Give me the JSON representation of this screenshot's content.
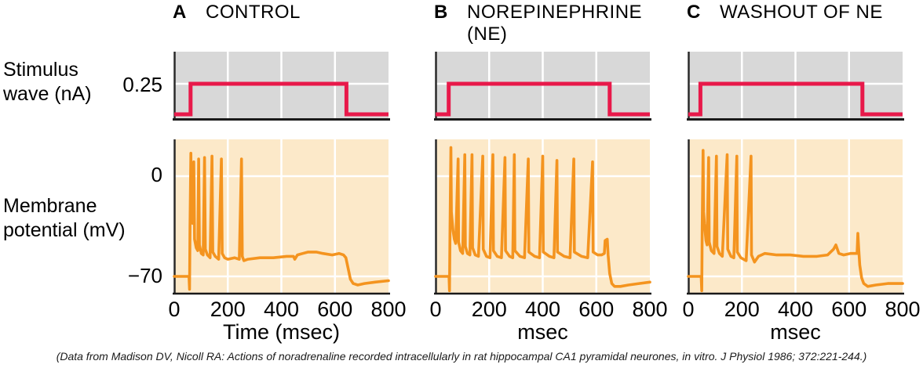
{
  "figure": {
    "row_labels": {
      "stimulus_line1": "Stimulus",
      "stimulus_line2": "wave (nA)",
      "membrane_line1": "Membrane",
      "membrane_line2": "potential (mV)"
    },
    "y_tick_labels": {
      "stimulus_amplitude": "0.25",
      "membrane_zero": "0",
      "membrane_rest": "−70"
    },
    "citation": "(Data from Madison DV, Nicoll RA: Actions of noradrenaline recorded intracellularly in rat hippocampal CA1 pyramidal neurones, in vitro. J Physiol 1986; 372:221-244.)"
  },
  "colors": {
    "stimulus_trace": "#e8194a",
    "membrane_trace": "#f4941f",
    "stimulus_bg": "#d8d8d8",
    "membrane_bg": "#fce9c9",
    "gridline": "#ffffff",
    "axis": "#1a1a1a"
  },
  "chart_data": [
    {
      "letter": "A",
      "title": "CONTROL",
      "title_line2": "",
      "xlabel": "Time (msec)",
      "xlim": [
        0,
        800
      ],
      "x_ticks": [
        0,
        200,
        400,
        600,
        800
      ],
      "stimulus": {
        "type": "line",
        "unit": "nA",
        "ylim": [
          0,
          0.5
        ],
        "y_ticks": [
          0.25
        ],
        "pulse": {
          "onset_msec": 61,
          "offset_msec": 643,
          "amplitude_nA": 0.25
        },
        "points": [
          [
            0,
            0
          ],
          [
            61,
            0
          ],
          [
            61,
            0.25
          ],
          [
            643,
            0.25
          ],
          [
            643,
            0
          ],
          [
            800,
            0
          ]
        ]
      },
      "membrane": {
        "type": "line",
        "unit": "mV",
        "ylim": [
          -82,
          25
        ],
        "y_ticks": [
          0,
          -70
        ],
        "resting_potential_mV": -70,
        "spike_times_msec": [
          62,
          73,
          91,
          113,
          141,
          176,
          251
        ],
        "points": [
          [
            0,
            -70
          ],
          [
            52,
            -70
          ],
          [
            55,
            -70
          ],
          [
            57,
            -79
          ],
          [
            59,
            -35
          ],
          [
            62,
            16
          ],
          [
            64,
            -28
          ],
          [
            69,
            -33
          ],
          [
            73,
            10
          ],
          [
            76,
            -44
          ],
          [
            82,
            -50
          ],
          [
            88,
            -52
          ],
          [
            91,
            12
          ],
          [
            94,
            -48
          ],
          [
            101,
            -54
          ],
          [
            108,
            -55
          ],
          [
            113,
            13
          ],
          [
            116,
            -51
          ],
          [
            124,
            -55
          ],
          [
            134,
            -57
          ],
          [
            141,
            14
          ],
          [
            144,
            -53
          ],
          [
            153,
            -56
          ],
          [
            166,
            -58
          ],
          [
            176,
            12
          ],
          [
            179,
            -54
          ],
          [
            188,
            -57
          ],
          [
            200,
            -58
          ],
          [
            225,
            -57
          ],
          [
            243,
            -58
          ],
          [
            251,
            12
          ],
          [
            254,
            -56
          ],
          [
            260,
            -59
          ],
          [
            275,
            -58
          ],
          [
            320,
            -57
          ],
          [
            370,
            -57
          ],
          [
            420,
            -56
          ],
          [
            445,
            -56
          ],
          [
            450,
            -58
          ],
          [
            460,
            -55
          ],
          [
            480,
            -54
          ],
          [
            500,
            -53
          ],
          [
            530,
            -53
          ],
          [
            555,
            -54
          ],
          [
            590,
            -55
          ],
          [
            615,
            -54
          ],
          [
            632,
            -55
          ],
          [
            641,
            -57
          ],
          [
            650,
            -65
          ],
          [
            658,
            -72
          ],
          [
            668,
            -75
          ],
          [
            685,
            -76
          ],
          [
            710,
            -75
          ],
          [
            750,
            -74
          ],
          [
            800,
            -73
          ]
        ]
      }
    },
    {
      "letter": "B",
      "title": "NOREPINEPHRINE",
      "title_line2": "(NE)",
      "xlabel": "msec",
      "xlim": [
        0,
        800
      ],
      "x_ticks": [
        0,
        200,
        400,
        600,
        800
      ],
      "stimulus": {
        "type": "line",
        "unit": "nA",
        "ylim": [
          0,
          0.5
        ],
        "y_ticks": [
          0.25
        ],
        "pulse": {
          "onset_msec": 49,
          "offset_msec": 650,
          "amplitude_nA": 0.25
        },
        "points": [
          [
            0,
            0
          ],
          [
            49,
            0
          ],
          [
            49,
            0.25
          ],
          [
            650,
            0.25
          ],
          [
            650,
            0
          ],
          [
            800,
            0
          ]
        ]
      },
      "membrane": {
        "type": "line",
        "unit": "mV",
        "ylim": [
          -82,
          25
        ],
        "y_ticks": [
          0,
          -70
        ],
        "resting_potential_mV": -70,
        "spike_times_msec": [
          57,
          84,
          109,
          136,
          176,
          214,
          259,
          294,
          346,
          400,
          453,
          516,
          586
        ],
        "points": [
          [
            0,
            -70
          ],
          [
            47,
            -70
          ],
          [
            50,
            -70
          ],
          [
            52,
            -80
          ],
          [
            54,
            -35
          ],
          [
            57,
            20
          ],
          [
            59,
            -25
          ],
          [
            62,
            -32
          ],
          [
            65,
            -38
          ],
          [
            70,
            -44
          ],
          [
            75,
            -47
          ],
          [
            84,
            12
          ],
          [
            86,
            -46
          ],
          [
            93,
            -52
          ],
          [
            101,
            -54
          ],
          [
            109,
            15
          ],
          [
            111,
            -49
          ],
          [
            119,
            -54
          ],
          [
            128,
            -55
          ],
          [
            136,
            15
          ],
          [
            138,
            -50
          ],
          [
            148,
            -55
          ],
          [
            160,
            -56
          ],
          [
            176,
            14
          ],
          [
            178,
            -51
          ],
          [
            190,
            -56
          ],
          [
            203,
            -57
          ],
          [
            214,
            15
          ],
          [
            216,
            -52
          ],
          [
            230,
            -56
          ],
          [
            246,
            -57
          ],
          [
            259,
            13
          ],
          [
            261,
            -52
          ],
          [
            276,
            -56
          ],
          [
            288,
            -57
          ],
          [
            294,
            15
          ],
          [
            296,
            -52
          ],
          [
            315,
            -56
          ],
          [
            332,
            -57
          ],
          [
            346,
            12
          ],
          [
            348,
            -53
          ],
          [
            370,
            -56
          ],
          [
            388,
            -57
          ],
          [
            400,
            14
          ],
          [
            402,
            -53
          ],
          [
            425,
            -56
          ],
          [
            442,
            -57
          ],
          [
            453,
            11
          ],
          [
            455,
            -53
          ],
          [
            480,
            -56
          ],
          [
            502,
            -57
          ],
          [
            516,
            12
          ],
          [
            518,
            -53
          ],
          [
            545,
            -56
          ],
          [
            568,
            -57
          ],
          [
            586,
            10
          ],
          [
            588,
            -53
          ],
          [
            605,
            -55
          ],
          [
            620,
            -55
          ],
          [
            630,
            -54
          ],
          [
            633,
            -45
          ],
          [
            641,
            -44
          ],
          [
            644,
            -55
          ],
          [
            650,
            -68
          ],
          [
            658,
            -75
          ],
          [
            668,
            -77
          ],
          [
            690,
            -77
          ],
          [
            720,
            -76
          ],
          [
            760,
            -75
          ],
          [
            800,
            -74
          ]
        ]
      }
    },
    {
      "letter": "C",
      "title": "WASHOUT OF NE",
      "title_line2": "",
      "xlabel": "msec",
      "xlim": [
        0,
        800
      ],
      "x_ticks": [
        0,
        200,
        400,
        600,
        800
      ],
      "stimulus": {
        "type": "line",
        "unit": "nA",
        "ylim": [
          0,
          0.5
        ],
        "y_ticks": [
          0.25
        ],
        "pulse": {
          "onset_msec": 45,
          "offset_msec": 650,
          "amplitude_nA": 0.25
        },
        "points": [
          [
            0,
            0
          ],
          [
            45,
            0
          ],
          [
            45,
            0.25
          ],
          [
            650,
            0.25
          ],
          [
            650,
            0
          ],
          [
            800,
            0
          ]
        ]
      },
      "membrane": {
        "type": "line",
        "unit": "mV",
        "ylim": [
          -82,
          25
        ],
        "y_ticks": [
          0,
          -70
        ],
        "resting_potential_mV": -70,
        "spike_times_msec": [
          55,
          76,
          105,
          145,
          181,
          234
        ],
        "points": [
          [
            0,
            -70
          ],
          [
            45,
            -70
          ],
          [
            48,
            -70
          ],
          [
            50,
            -80
          ],
          [
            52,
            -35
          ],
          [
            55,
            18
          ],
          [
            57,
            -25
          ],
          [
            60,
            -33
          ],
          [
            66,
            -45
          ],
          [
            70,
            -48
          ],
          [
            76,
            13
          ],
          [
            78,
            -46
          ],
          [
            86,
            -52
          ],
          [
            96,
            -54
          ],
          [
            105,
            14
          ],
          [
            107,
            -49
          ],
          [
            116,
            -54
          ],
          [
            127,
            -56
          ],
          [
            145,
            15
          ],
          [
            147,
            -51
          ],
          [
            159,
            -56
          ],
          [
            170,
            -57
          ],
          [
            181,
            14
          ],
          [
            183,
            -53
          ],
          [
            196,
            -57
          ],
          [
            216,
            -59
          ],
          [
            234,
            14
          ],
          [
            236,
            -55
          ],
          [
            247,
            -60
          ],
          [
            262,
            -56
          ],
          [
            285,
            -54
          ],
          [
            330,
            -55
          ],
          [
            380,
            -55
          ],
          [
            430,
            -56
          ],
          [
            480,
            -56
          ],
          [
            520,
            -55
          ],
          [
            542,
            -51
          ],
          [
            551,
            -48
          ],
          [
            562,
            -54
          ],
          [
            580,
            -55
          ],
          [
            605,
            -54
          ],
          [
            622,
            -54
          ],
          [
            630,
            -54
          ],
          [
            633,
            -40
          ],
          [
            636,
            -50
          ],
          [
            640,
            -62
          ],
          [
            647,
            -71
          ],
          [
            655,
            -75
          ],
          [
            670,
            -77
          ],
          [
            700,
            -76
          ],
          [
            745,
            -75
          ],
          [
            800,
            -75
          ]
        ]
      }
    }
  ]
}
